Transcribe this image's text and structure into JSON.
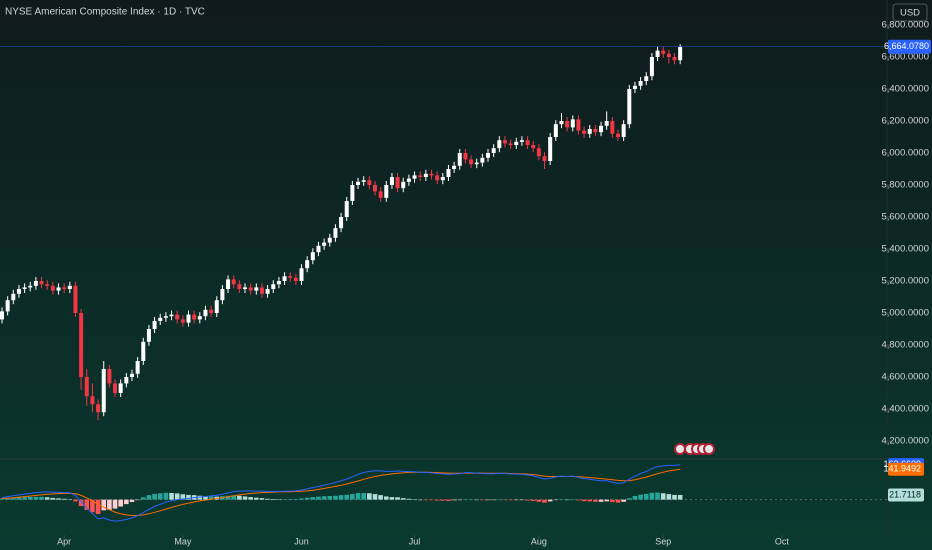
{
  "chart_data": [
    {
      "type": "candlestick",
      "title": "NYSE American Composite Index · 1D · TVC",
      "currency": "USD",
      "up_color": "#ffffff",
      "down_color": "#f23645",
      "last_color": "#2962ff",
      "open": [
        4960,
        5010,
        5080,
        5120,
        5150,
        5160,
        5170,
        5200,
        5180,
        5170,
        5140,
        5160,
        5150,
        5170,
        5000,
        4600,
        4480,
        4430,
        4380,
        4650,
        4560,
        4500,
        4560,
        4600,
        4620,
        4700,
        4820,
        4900,
        4950,
        4970,
        4980,
        4990,
        4960,
        4940,
        4990,
        4960,
        4980,
        5020,
        5000,
        5080,
        5150,
        5210,
        5180,
        5150,
        5160,
        5140,
        5160,
        5120,
        5150,
        5180,
        5200,
        5230,
        5220,
        5200,
        5280,
        5330,
        5380,
        5420,
        5440,
        5470,
        5530,
        5600,
        5700,
        5800,
        5820,
        5830,
        5800,
        5760,
        5720,
        5800,
        5850,
        5780,
        5820,
        5840,
        5860,
        5850,
        5870,
        5860,
        5830,
        5850,
        5900,
        5920,
        6000,
        5960,
        5930,
        5940,
        5970,
        6000,
        6030,
        6080,
        6060,
        6050,
        6070,
        6080,
        6050,
        6030,
        5980,
        5950,
        6100,
        6180,
        6200,
        6160,
        6210,
        6140,
        6120,
        6150,
        6130,
        6170,
        6200,
        6120,
        6100,
        6180,
        6400,
        6420,
        6450,
        6480,
        6600,
        6640,
        6620,
        6600,
        6580
      ],
      "high": [
        5035,
        5105,
        5145,
        5175,
        5185,
        5195,
        5225,
        5225,
        5205,
        5195,
        5185,
        5185,
        5195,
        5195,
        5025,
        4650,
        4560,
        4460,
        4700,
        4675,
        4585,
        4585,
        4625,
        4645,
        4725,
        4845,
        4925,
        4975,
        4995,
        5005,
        5015,
        5015,
        4985,
        5015,
        5015,
        5005,
        5045,
        5045,
        5105,
        5175,
        5235,
        5235,
        5205,
        5185,
        5185,
        5185,
        5185,
        5175,
        5205,
        5225,
        5255,
        5255,
        5245,
        5305,
        5355,
        5405,
        5445,
        5465,
        5495,
        5555,
        5625,
        5725,
        5825,
        5845,
        5855,
        5855,
        5825,
        5785,
        5825,
        5875,
        5875,
        5845,
        5865,
        5885,
        5885,
        5895,
        5895,
        5885,
        5875,
        5925,
        5945,
        6025,
        6025,
        5985,
        5965,
        5995,
        6025,
        6055,
        6105,
        6105,
        6085,
        6095,
        6105,
        6105,
        6075,
        6055,
        6005,
        6125,
        6205,
        6250,
        6225,
        6235,
        6235,
        6165,
        6175,
        6175,
        6195,
        6260,
        6225,
        6145,
        6205,
        6425,
        6445,
        6475,
        6505,
        6625,
        6665,
        6665,
        6645,
        6625,
        6680
      ],
      "low": [
        4935,
        4985,
        5055,
        5095,
        5125,
        5135,
        5145,
        5155,
        5145,
        5115,
        5115,
        5125,
        5125,
        4975,
        4520,
        4420,
        4380,
        4330,
        4355,
        4535,
        4475,
        4475,
        4535,
        4575,
        4595,
        4675,
        4795,
        4875,
        4925,
        4945,
        4955,
        4935,
        4915,
        4915,
        4935,
        4935,
        4955,
        4975,
        4975,
        5055,
        5125,
        5155,
        5125,
        5125,
        5115,
        5115,
        5095,
        5095,
        5125,
        5155,
        5175,
        5195,
        5175,
        5175,
        5255,
        5305,
        5355,
        5395,
        5415,
        5445,
        5505,
        5575,
        5675,
        5775,
        5795,
        5775,
        5735,
        5695,
        5695,
        5775,
        5755,
        5755,
        5795,
        5815,
        5825,
        5825,
        5835,
        5805,
        5805,
        5825,
        5875,
        5895,
        5935,
        5905,
        5905,
        5915,
        5945,
        5975,
        6005,
        6035,
        6025,
        6025,
        6045,
        6025,
        6005,
        5955,
        5900,
        5925,
        6075,
        6155,
        6135,
        6135,
        6115,
        6095,
        6095,
        6105,
        6105,
        6145,
        6095,
        6075,
        6075,
        6155,
        6375,
        6395,
        6425,
        6455,
        6575,
        6595,
        6560,
        6555,
        6555
      ],
      "close": [
        5010,
        5080,
        5120,
        5150,
        5160,
        5170,
        5200,
        5180,
        5170,
        5140,
        5160,
        5150,
        5170,
        5000,
        4600,
        4480,
        4430,
        4380,
        4650,
        4560,
        4500,
        4560,
        4600,
        4620,
        4700,
        4820,
        4900,
        4950,
        4970,
        4980,
        4990,
        4960,
        4940,
        4990,
        4960,
        4980,
        5020,
        5000,
        5080,
        5150,
        5210,
        5180,
        5150,
        5160,
        5140,
        5160,
        5120,
        5150,
        5180,
        5200,
        5230,
        5220,
        5200,
        5280,
        5330,
        5380,
        5420,
        5440,
        5470,
        5530,
        5600,
        5700,
        5800,
        5820,
        5830,
        5800,
        5760,
        5720,
        5800,
        5850,
        5780,
        5820,
        5840,
        5860,
        5850,
        5870,
        5860,
        5830,
        5850,
        5900,
        5920,
        6000,
        5960,
        5930,
        5940,
        5970,
        6000,
        6030,
        6080,
        6060,
        6050,
        6070,
        6080,
        6050,
        6030,
        5980,
        5950,
        6100,
        6180,
        6200,
        6160,
        6210,
        6140,
        6120,
        6150,
        6130,
        6170,
        6200,
        6120,
        6100,
        6180,
        6400,
        6420,
        6450,
        6480,
        6600,
        6640,
        6620,
        6600,
        6580,
        6664.078
      ],
      "last_close_label": "6,664.0780",
      "ylim": [
        4093.75,
        6956.25
      ],
      "yticks": [
        {
          "value": 4200,
          "label": "4,200.0000"
        },
        {
          "value": 4400,
          "label": "4,400.0000"
        },
        {
          "value": 4600,
          "label": "4,600.0000"
        },
        {
          "value": 4800,
          "label": "4,800.0000"
        },
        {
          "value": 5000,
          "label": "5,000.0000"
        },
        {
          "value": 5200,
          "label": "5,200.0000"
        },
        {
          "value": 5400,
          "label": "5,400.0000"
        },
        {
          "value": 5600,
          "label": "5,600.0000"
        },
        {
          "value": 5800,
          "label": "5,800.0000"
        },
        {
          "value": 6000,
          "label": "6,000.0000"
        },
        {
          "value": 6200,
          "label": "6,200.0000"
        },
        {
          "value": 6400,
          "label": "6,400.0000"
        },
        {
          "value": 6600,
          "label": "6,600.0000"
        },
        {
          "value": 6800,
          "label": "6,800.0000"
        }
      ],
      "xlim": [
        -0.354,
        156.6
      ],
      "xticks": [
        {
          "value": 11,
          "label": "Apr"
        },
        {
          "value": 32,
          "label": "May"
        },
        {
          "value": 53,
          "label": "Jun"
        },
        {
          "value": 73,
          "label": "Jul"
        },
        {
          "value": 95,
          "label": "Aug"
        },
        {
          "value": 117,
          "label": "Sep"
        },
        {
          "value": 138,
          "label": "Oct"
        }
      ]
    },
    {
      "type": "macd",
      "ylim": [
        -165,
        185
      ],
      "macd": {
        "color": "#2962ff",
        "values": [
          10,
          14,
          18,
          22,
          26,
          30,
          33,
          35,
          36,
          35,
          34,
          33,
          32,
          20,
          -10,
          -40,
          -65,
          -90,
          -85,
          -95,
          -100,
          -98,
          -92,
          -85,
          -75,
          -60,
          -45,
          -32,
          -22,
          -12,
          -5,
          0,
          3,
          6,
          10,
          12,
          14,
          18,
          20,
          25,
          32,
          38,
          40,
          41,
          41,
          40,
          40,
          38,
          38,
          38,
          39,
          40,
          41,
          45,
          50,
          56,
          62,
          68,
          74,
          80,
          88,
          96,
          106,
          118,
          126,
          132,
          134,
          134,
          132,
          132,
          134,
          132,
          131,
          130,
          128,
          127,
          125,
          122,
          120,
          118,
          120,
          121,
          126,
          126,
          124,
          122,
          121,
          121,
          123,
          122,
          120,
          119,
          118,
          115,
          111,
          104,
          96,
          100,
          106,
          110,
          108,
          110,
          104,
          98,
          95,
          91,
          88,
          88,
          82,
          76,
          78,
          96,
          110,
          122,
          132,
          145,
          154,
          158,
          160,
          160,
          163.6609
        ]
      },
      "signal": {
        "color": "#ff6d00",
        "values": [
          5,
          7,
          9,
          12,
          14,
          17,
          20,
          22,
          25,
          27,
          28,
          29,
          30,
          28,
          20,
          8,
          -6,
          -23,
          -35,
          -47,
          -58,
          -66,
          -71,
          -74,
          -74,
          -71,
          -66,
          -59,
          -52,
          -44,
          -36,
          -29,
          -22,
          -16,
          -11,
          -6,
          -2,
          2,
          6,
          9,
          14,
          18,
          22,
          26,
          29,
          31,
          33,
          34,
          35,
          36,
          37,
          37,
          38,
          39,
          41,
          44,
          48,
          52,
          57,
          62,
          67,
          73,
          80,
          87,
          95,
          102,
          108,
          113,
          117,
          120,
          123,
          125,
          127,
          128,
          128,
          128,
          127,
          126,
          125,
          124,
          123,
          123,
          124,
          124,
          124,
          124,
          123,
          123,
          123,
          123,
          122,
          121,
          120,
          119,
          117,
          114,
          110,
          108,
          108,
          108,
          108,
          108,
          107,
          105,
          103,
          101,
          98,
          96,
          93,
          90,
          88,
          89,
          93,
          99,
          105,
          113,
          121,
          128,
          134,
          138,
          141.9492
        ]
      },
      "histogram": {
        "colors": [
          "#26a69a",
          "#b2dfdb",
          "#ffcdd2",
          "#ff5252"
        ],
        "values": [
          5,
          7,
          9,
          10,
          12,
          13,
          13,
          13,
          11,
          8,
          6,
          4,
          2,
          -8,
          -30,
          -48,
          -59,
          -67,
          -50,
          -48,
          -42,
          -32,
          -21,
          -11,
          -1,
          11,
          21,
          27,
          30,
          32,
          31,
          29,
          25,
          22,
          21,
          18,
          16,
          16,
          14,
          16,
          18,
          20,
          18,
          15,
          12,
          9,
          7,
          4,
          3,
          2,
          2,
          3,
          3,
          6,
          9,
          12,
          14,
          16,
          17,
          18,
          21,
          23,
          26,
          31,
          31,
          30,
          26,
          21,
          15,
          12,
          11,
          7,
          4,
          2,
          0,
          -1,
          -2,
          -4,
          -5,
          -6,
          -3,
          -2,
          2,
          2,
          0,
          -2,
          -2,
          -2,
          0,
          -1,
          -2,
          -2,
          -2,
          -4,
          -6,
          -10,
          -14,
          -8,
          -2,
          2,
          0,
          2,
          -3,
          -7,
          -8,
          -10,
          -10,
          -8,
          -11,
          -14,
          -10,
          7,
          17,
          23,
          27,
          32,
          33,
          30,
          26,
          22,
          21.7118
        ]
      }
    }
  ]
}
